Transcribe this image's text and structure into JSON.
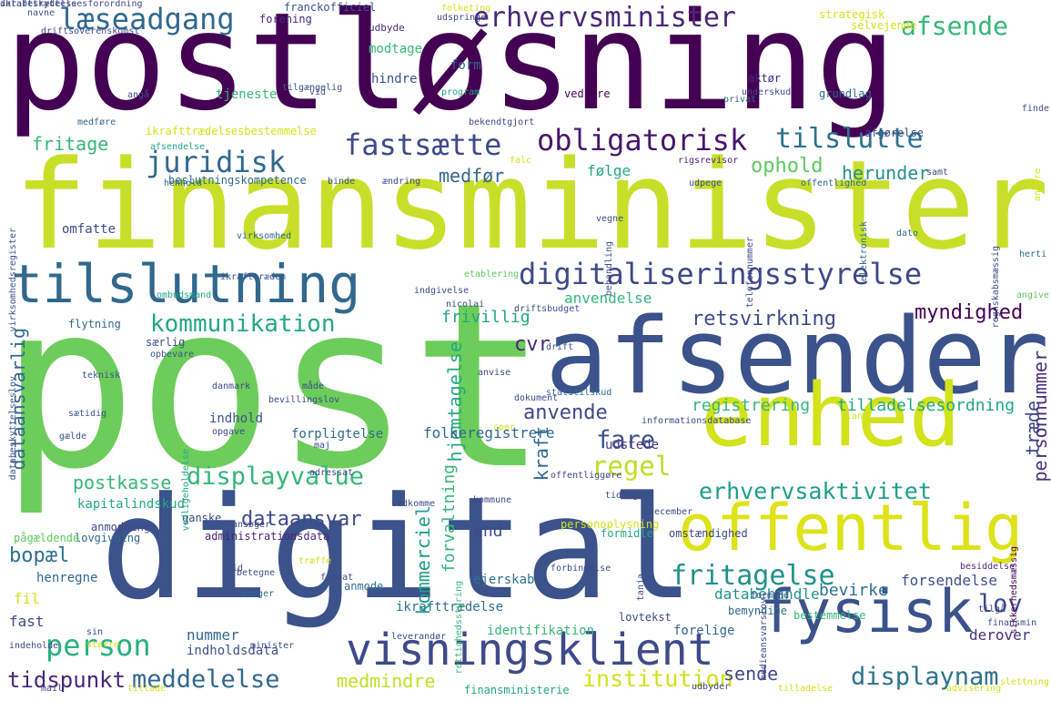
{
  "words": [
    {
      "text": "postløsning",
      "color": "#440154"
    },
    {
      "text": "finansminister",
      "color": "#c8df2a"
    },
    {
      "text": "post",
      "color": "#6ccd5a"
    },
    {
      "text": "digital",
      "color": "#3b528b"
    },
    {
      "text": "afsender",
      "color": "#3b528b"
    },
    {
      "text": "enhed",
      "color": "#d2e21b"
    },
    {
      "text": "tilslutning",
      "color": "#31688e"
    },
    {
      "text": "offentlig",
      "color": "#dde318"
    },
    {
      "text": "fysisk",
      "color": "#3b528b"
    },
    {
      "text": "visningsklient",
      "color": "#3e4a89"
    },
    {
      "text": "digitaliseringsstyrelse",
      "color": "#3e4989"
    },
    {
      "text": "juridisk",
      "color": "#31688e"
    },
    {
      "text": "fastsætte",
      "color": "#3e4a89"
    },
    {
      "text": "obligatorisk",
      "color": "#481769"
    },
    {
      "text": "tilslutte",
      "color": "#2c728e"
    },
    {
      "text": "læseadgang",
      "color": "#31688e"
    },
    {
      "text": "erhvervsminister",
      "color": "#482878"
    },
    {
      "text": "afsende",
      "color": "#35b779"
    },
    {
      "text": "kommunikation",
      "color": "#22a884"
    },
    {
      "text": "displayvalue",
      "color": "#35b779"
    },
    {
      "text": "fritagelse",
      "color": "#20928c"
    },
    {
      "text": "erhvervsaktivitet",
      "color": "#1f9e89"
    },
    {
      "text": "regel",
      "color": "#bddf26"
    },
    {
      "text": "person",
      "color": "#29af7f"
    },
    {
      "text": "displaynam",
      "color": "#2c728e"
    },
    {
      "text": "retsvirkning",
      "color": "#3e4a89"
    },
    {
      "text": "myndighed",
      "color": "#440154"
    },
    {
      "text": "fare",
      "color": "#3b528b"
    },
    {
      "text": "lov",
      "color": "#3e4a89"
    },
    {
      "text": "meddelelse",
      "color": "#31688e"
    },
    {
      "text": "institution",
      "color": "#d2e21b"
    },
    {
      "text": "tidspunkt",
      "color": "#482878"
    },
    {
      "text": "dataansvar",
      "color": "#3e4989"
    },
    {
      "text": "dataansvarlig",
      "color": "#31688e"
    },
    {
      "text": "fritage",
      "color": "#35b779"
    },
    {
      "text": "medfør",
      "color": "#31688e"
    },
    {
      "text": "følge",
      "color": "#22a884"
    },
    {
      "text": "ophold",
      "color": "#5ec962"
    },
    {
      "text": "herunder",
      "color": "#21918c"
    },
    {
      "text": "anvende",
      "color": "#3e4989"
    },
    {
      "text": "anvendelse",
      "color": "#35b779"
    },
    {
      "text": "frivillig",
      "color": "#22a884"
    },
    {
      "text": "cvr",
      "color": "#482878"
    },
    {
      "text": "forvaltning",
      "color": "#35b779"
    },
    {
      "text": "kommerciel",
      "color": "#1f9e89"
    },
    {
      "text": "kraft",
      "color": "#31688e"
    },
    {
      "text": "hjemtagelse",
      "color": "#22a884"
    },
    {
      "text": "træde",
      "color": "#3e4a89"
    },
    {
      "text": "personnummer",
      "color": "#46327e"
    },
    {
      "text": "registrering",
      "color": "#35b779"
    },
    {
      "text": "tilladelsesordning",
      "color": "#22a884"
    },
    {
      "text": "folkeregistrere",
      "color": "#31688e"
    },
    {
      "text": "postkasse",
      "color": "#35b779"
    },
    {
      "text": "bopæl",
      "color": "#2c728e"
    },
    {
      "text": "and",
      "color": "#3e4a89"
    },
    {
      "text": "sende",
      "color": "#3e4a89"
    },
    {
      "text": "medmindre",
      "color": "#c2df23"
    },
    {
      "text": "bevirke",
      "color": "#2c728e"
    },
    {
      "text": "databehandle",
      "color": "#21918c"
    },
    {
      "text": "forsendelse",
      "color": "#3b528b"
    },
    {
      "text": "derover",
      "color": "#472d7b"
    },
    {
      "text": "nummer",
      "color": "#31688e"
    },
    {
      "text": "fast",
      "color": "#3e4a89"
    },
    {
      "text": "fil",
      "color": "#d2e21b"
    },
    {
      "text": "henregne",
      "color": "#31688e"
    },
    {
      "text": "ejerskab",
      "color": "#2c728e"
    },
    {
      "text": "udstede",
      "color": "#443983"
    },
    {
      "text": "forpligtelse",
      "color": "#31688e"
    },
    {
      "text": "indhold",
      "color": "#3b528b"
    },
    {
      "text": "kapitalindskud",
      "color": "#22a884"
    },
    {
      "text": "ikrafttrædelse",
      "color": "#2c728e"
    },
    {
      "text": "identifikation",
      "color": "#35b779"
    },
    {
      "text": "forelige",
      "color": "#31688e"
    },
    {
      "text": "indholdsdata",
      "color": "#3b528b"
    },
    {
      "text": "finansministerie",
      "color": "#22a884"
    },
    {
      "text": "omfatte",
      "color": "#3e4a89"
    },
    {
      "text": "beslutningskompetence",
      "color": "#31688e"
    },
    {
      "text": "ikrafttrædelsesbestemmelse",
      "color": "#d2e21b"
    },
    {
      "text": "tjeneste",
      "color": "#35b779"
    },
    {
      "text": "hindre",
      "color": "#3b528b"
    },
    {
      "text": "modtage",
      "color": "#35b779"
    },
    {
      "text": "form",
      "color": "#31688e"
    },
    {
      "text": "udbyde",
      "color": "#472d7b"
    },
    {
      "text": "forening",
      "color": "#482878"
    },
    {
      "text": "franckofficiel",
      "color": "#3b528b"
    },
    {
      "text": "strategisk",
      "color": "#d2e21b"
    },
    {
      "text": "selvejende",
      "color": "#d2e21b"
    },
    {
      "text": "aktør",
      "color": "#482878"
    },
    {
      "text": "grundlag",
      "color": "#31688e"
    },
    {
      "text": "afgørelse",
      "color": "#3e4a89"
    },
    {
      "text": "vedrøre",
      "color": "#440154"
    },
    {
      "text": "flytning",
      "color": "#31688e"
    },
    {
      "text": "særlig",
      "color": "#3b528b"
    },
    {
      "text": "ombudsmand",
      "color": "#22a884"
    },
    {
      "text": "opbevare",
      "color": "#3b528b"
    },
    {
      "text": "anmodning",
      "color": "#3e4a89"
    },
    {
      "text": "administrationsdata",
      "color": "#482878"
    },
    {
      "text": "lovgivning",
      "color": "#31688e"
    },
    {
      "text": "pågældende",
      "color": "#5ec962"
    },
    {
      "text": "ganske",
      "color": "#3e4a89"
    },
    {
      "text": "personoplysning",
      "color": "#d2e21b"
    },
    {
      "text": "formidle",
      "color": "#22a884"
    },
    {
      "text": "omstændighed",
      "color": "#3e4a89"
    },
    {
      "text": "bestemmelse",
      "color": "#35b779"
    },
    {
      "text": "lovtekst",
      "color": "#3e4a89"
    },
    {
      "text": "anmode",
      "color": "#2c728e"
    },
    {
      "text": "borger",
      "color": "#31688e"
    },
    {
      "text": "betegne",
      "color": "#3e4a89"
    },
    {
      "text": "bemyndige",
      "color": "#31688e"
    },
    {
      "text": "besiddelse",
      "color": "#472d7b"
    },
    {
      "text": "vedligeholdelse",
      "color": "#22a884"
    },
    {
      "text": "december",
      "color": "#3e4a89"
    },
    {
      "text": "rettighedsstyring",
      "color": "#35b779"
    },
    {
      "text": "bevillingslov",
      "color": "#3e4a89"
    },
    {
      "text": "drift",
      "color": "#3b528b"
    },
    {
      "text": "sikkerhedsmæssig",
      "color": "#440154"
    },
    {
      "text": "databeskyttelseslov",
      "color": "#3b528b"
    },
    {
      "text": "virksomhedsregister",
      "color": "#3b528b"
    },
    {
      "text": "nicolai",
      "color": "#3e4a89"
    },
    {
      "text": "angive",
      "color": "#5ec962"
    },
    {
      "text": "herti",
      "color": "#2c728e"
    },
    {
      "text": "rigsrevisor",
      "color": "#482878"
    },
    {
      "text": "dato",
      "color": "#31688e"
    },
    {
      "text": "tilgængelig",
      "color": "#3b528b"
    },
    {
      "text": "udspringe",
      "color": "#3e4a89"
    },
    {
      "text": "driftsoverenskomst",
      "color": "#3e4a89"
    },
    {
      "text": "navne",
      "color": "#3b528b"
    },
    {
      "text": "folketing",
      "color": "#d2e21b"
    },
    {
      "text": "privat",
      "color": "#31688e"
    },
    {
      "text": "program",
      "color": "#22a884"
    },
    {
      "text": "vid",
      "color": "#3b528b"
    },
    {
      "text": "angå",
      "color": "#3b528b"
    },
    {
      "text": "medføre",
      "color": "#31688e"
    },
    {
      "text": "afsendelse",
      "color": "#22a884"
    },
    {
      "text": "henhold",
      "color": "#31688e"
    },
    {
      "text": "binde",
      "color": "#3b528b"
    },
    {
      "text": "ændring",
      "color": "#3e4a89"
    },
    {
      "text": "falc",
      "color": "#d2e21b"
    },
    {
      "text": "udpege",
      "color": "#3e4a89"
    },
    {
      "text": "offentlighed",
      "color": "#31688e"
    },
    {
      "text": "samt",
      "color": "#3b528b"
    },
    {
      "text": "vegne",
      "color": "#3b528b"
    },
    {
      "text": "behandling",
      "color": "#3e4a89"
    },
    {
      "text": "telefonnummer",
      "color": "#3e4a89"
    },
    {
      "text": "elektronisk",
      "color": "#31688e"
    },
    {
      "text": "regnskabsmæssig",
      "color": "#3e4a89"
    },
    {
      "text": "virksomhed",
      "color": "#31688e"
    },
    {
      "text": "ikrafttræden",
      "color": "#3b528b"
    },
    {
      "text": "indgivelse",
      "color": "#3e4a89"
    },
    {
      "text": "etablering",
      "color": "#5ec962"
    },
    {
      "text": "driftsbudget",
      "color": "#3b528b"
    },
    {
      "text": "teknisk",
      "color": "#3b528b"
    },
    {
      "text": "danmark",
      "color": "#3e4a89"
    },
    {
      "text": "måde",
      "color": "#3e4a89"
    },
    {
      "text": "sætidig",
      "color": "#3b528b"
    },
    {
      "text": "gælde",
      "color": "#3b528b"
    },
    {
      "text": "opgave",
      "color": "#3e4a89"
    },
    {
      "text": "cper",
      "color": "#d2e21b"
    },
    {
      "text": "anvise",
      "color": "#3e4a89"
    },
    {
      "text": "dokument",
      "color": "#3e4a89"
    },
    {
      "text": "statstilskud",
      "color": "#31688e"
    },
    {
      "text": "offentliggøre",
      "color": "#3e4a89"
    },
    {
      "text": "informationsdatabase",
      "color": "#3e4a89"
    },
    {
      "text": "lang",
      "color": "#d2e21b"
    },
    {
      "text": "adressat",
      "color": "#3e4a89"
    },
    {
      "text": "maj",
      "color": "#3e4a89"
    },
    {
      "text": "tidligst",
      "color": "#3e4a89"
    },
    {
      "text": "kommune",
      "color": "#3e4a89"
    },
    {
      "text": "vedkomme",
      "color": "#3e4a89"
    },
    {
      "text": "ansøger",
      "color": "#3e4a89"
    },
    {
      "text": "id",
      "color": "#3e4a89"
    },
    {
      "text": "træffe",
      "color": "#d2e21b"
    },
    {
      "text": "format",
      "color": "#3e4a89"
    },
    {
      "text": "forbindelse",
      "color": "#3e4a89"
    },
    {
      "text": "tanja",
      "color": "#3e4a89"
    },
    {
      "text": "formand",
      "color": "#3e4a89"
    },
    {
      "text": "tilgå",
      "color": "#3e4a89"
    },
    {
      "text": "finansmin",
      "color": "#3e4a89"
    },
    {
      "text": "slettning",
      "color": "#d2e21b"
    },
    {
      "text": "sin",
      "color": "#3e4a89"
    },
    {
      "text": "større",
      "color": "#d2e21b"
    },
    {
      "text": "minister",
      "color": "#3e4a89"
    },
    {
      "text": "leverandør",
      "color": "#3e4a89"
    },
    {
      "text": "indeholde",
      "color": "#3e4a89"
    },
    {
      "text": "mail",
      "color": "#3e4a89"
    },
    {
      "text": "tillade",
      "color": "#d2e21b"
    },
    {
      "text": "udbyder",
      "color": "#3e4a89"
    },
    {
      "text": "tilladelse",
      "color": "#d2e21b"
    },
    {
      "text": "medieansvarslov",
      "color": "#3e4a89"
    },
    {
      "text": "advisering",
      "color": "#d2e21b"
    },
    {
      "text": "underskud",
      "color": "#3e4a89"
    },
    {
      "text": "bekendtgjort",
      "color": "#3e4a89"
    },
    {
      "text": "anføre",
      "color": "#d2e21b"
    },
    {
      "text": "finde",
      "color": "#3e4a89"
    },
    {
      "text": "databeskyttelsesforordning",
      "color": "#3e4a89"
    },
    {
      "text": "ikrafttrædelse",
      "color": "#3e4a89"
    }
  ]
}
